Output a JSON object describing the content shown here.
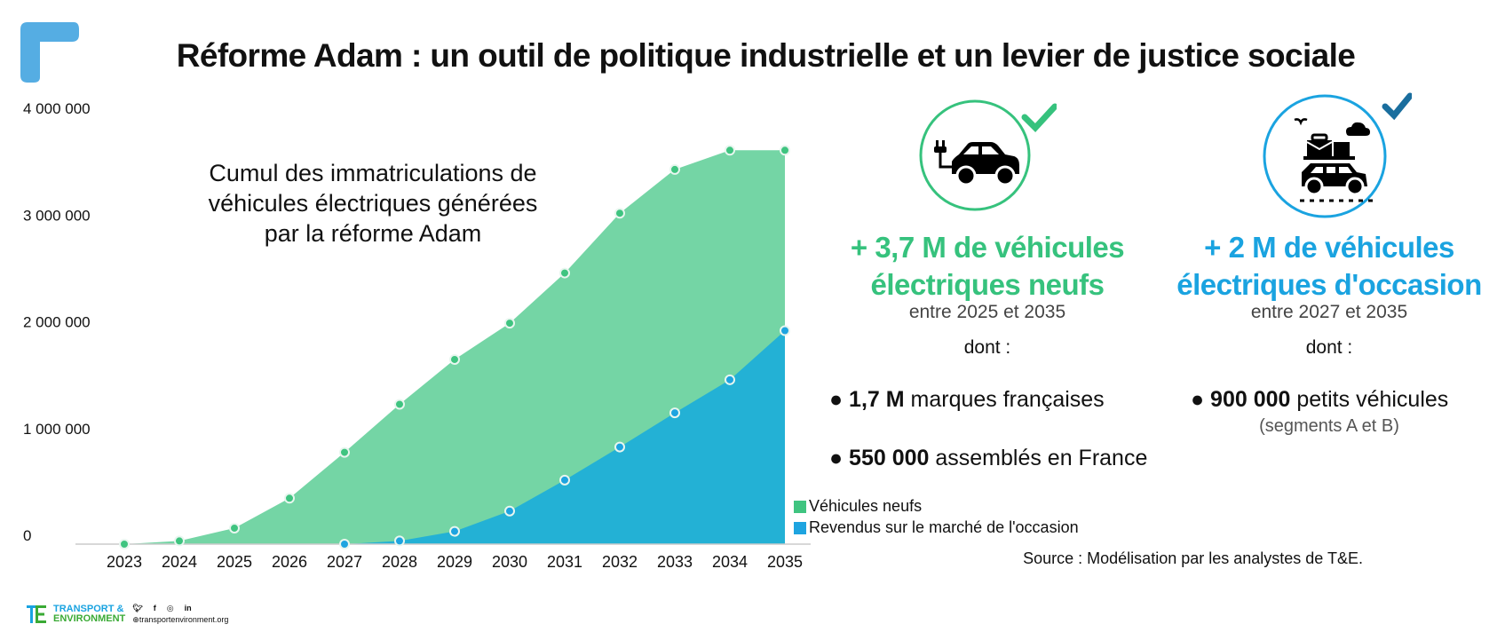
{
  "header": {
    "title": "Réforme Adam : un outil de politique industrielle et un levier de justice sociale"
  },
  "colors": {
    "green_new": "#74d5a5",
    "green_point": "#3fc480",
    "green_text": "#36c27d",
    "blue_used": "#23b1d5",
    "blue_point": "#1ea4e0",
    "blue_text": "#1aa3e0",
    "check_green": "#36c27d",
    "check_blue": "#1a6e9e",
    "logo_blue": "#55ade3"
  },
  "chart_data": {
    "type": "area",
    "title": "Cumul des immatriculations de véhicules électriques générées par la réforme Adam",
    "title_lines": [
      "Cumul des immatriculations de",
      "véhicules électriques générées",
      "par la réforme Adam"
    ],
    "xlabel": "",
    "ylabel": "",
    "x": [
      2023,
      2024,
      2025,
      2026,
      2027,
      2028,
      2029,
      2030,
      2031,
      2032,
      2033,
      2034,
      2035
    ],
    "x_tick_labels": [
      "2023",
      "2024",
      "2025",
      "2026",
      "2027",
      "2028",
      "2029",
      "2030",
      "2031",
      "2032",
      "2033",
      "2034",
      "2035"
    ],
    "y_ticks": [
      0,
      1000000,
      2000000,
      3000000,
      4000000
    ],
    "y_tick_labels": [
      "0",
      "1 000 000",
      "2 000 000",
      "3 000 000",
      "4 000 000"
    ],
    "ylim": [
      0,
      4000000
    ],
    "grid": false,
    "legend_position": "bottom-right",
    "series": [
      {
        "name": "Véhicules neufs",
        "color": "#74d5a5",
        "values": [
          0,
          30000,
          150000,
          430000,
          860000,
          1310000,
          1730000,
          2070000,
          2540000,
          3100000,
          3510000,
          3690000,
          3690000
        ]
      },
      {
        "name": "Revendus sur le marché de l'occasion",
        "color": "#23b1d5",
        "values": [
          null,
          null,
          null,
          null,
          0,
          30000,
          120000,
          310000,
          600000,
          910000,
          1230000,
          1540000,
          2000000
        ]
      }
    ]
  },
  "legend": {
    "items": [
      {
        "label": "Véhicules neufs"
      },
      {
        "label": "Revendus sur le marché de l'occasion"
      }
    ]
  },
  "panel_new": {
    "icon": "electric-car-icon",
    "headline_line1": "+ 3,7 M de véhicules",
    "headline_line2": "électriques neufs",
    "period": "entre 2025 et 2035",
    "dont": "dont :",
    "bullets": [
      {
        "bold": "1,7 M",
        "text": " marques françaises"
      },
      {
        "bold": "550 000",
        "text": " assemblés en France"
      }
    ]
  },
  "panel_used": {
    "icon": "loaded-car-icon",
    "headline_line1": "+ 2 M de véhicules",
    "headline_line2": "électriques d'occasion",
    "period": "entre 2027 et 2035",
    "dont": "dont :",
    "bullets": [
      {
        "bold": "900 000",
        "text": " petits véhicules",
        "note": "(segments A et B)"
      }
    ]
  },
  "source": "Source : Modélisation par les analystes de T&E.",
  "footer": {
    "org_line1": "TRANSPORT &",
    "org_line2": "ENVIRONMENT",
    "website": "transportenvironment.org",
    "social": [
      "twitter",
      "facebook",
      "instagram",
      "linkedin"
    ]
  }
}
